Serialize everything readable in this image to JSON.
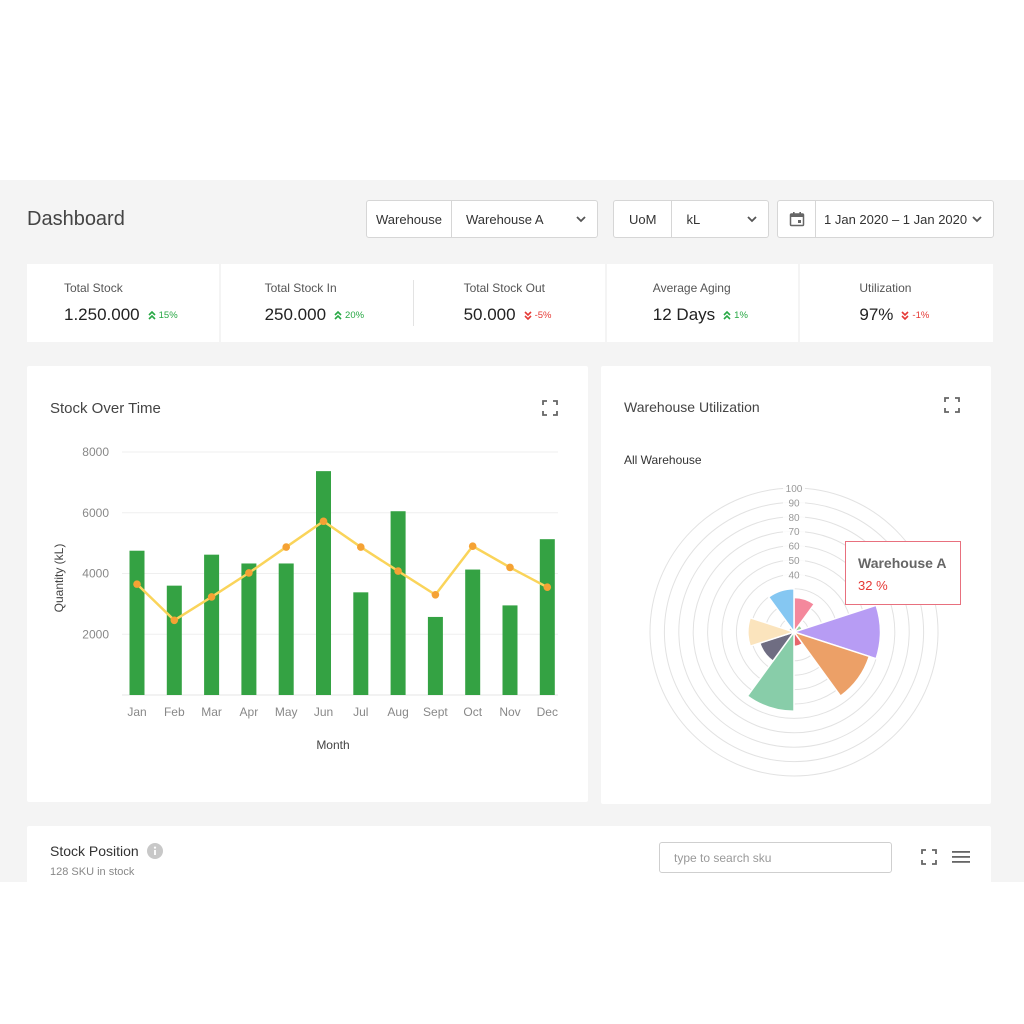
{
  "header": {
    "title": "Dashboard",
    "warehouse_filter": {
      "label": "Warehouse",
      "value": "Warehouse A"
    },
    "uom_filter": {
      "label": "UoM",
      "value": "kL"
    },
    "date_filter": {
      "value": "1 Jan 2020 – 1 Jan 2020",
      "icon": "calendar-icon"
    }
  },
  "kpis": [
    {
      "label": "Total Stock",
      "value": "1.250.000",
      "delta": "15%",
      "direction": "up"
    },
    {
      "label": "Total Stock In",
      "value": "250.000",
      "delta": "20%",
      "direction": "up"
    },
    {
      "label": "Total Stock Out",
      "value": "50.000",
      "delta": "-5%",
      "direction": "down"
    },
    {
      "label": "Average Aging",
      "value": "12 Days",
      "delta": "1%",
      "direction": "up"
    },
    {
      "label": "Utilization",
      "value": "97%",
      "delta": "-1%",
      "direction": "down"
    }
  ],
  "stock_over_time": {
    "title": "Stock Over Time",
    "chart_data": {
      "type": "bar",
      "categories": [
        "Jan",
        "Feb",
        "Mar",
        "Apr",
        "May",
        "Jun",
        "Jul",
        "Aug",
        "Sept",
        "Oct",
        "Nov",
        "Dec"
      ],
      "series": [
        {
          "type": "bar",
          "values": [
            4750,
            3600,
            4620,
            4330,
            4330,
            7370,
            3380,
            6050,
            2570,
            4130,
            2950,
            5130
          ],
          "color": "#34a243"
        },
        {
          "type": "line",
          "values": [
            3650,
            2460,
            3230,
            4020,
            4870,
            5720,
            4870,
            4080,
            3300,
            4900,
            4200,
            3550
          ],
          "color": "#fad45a",
          "marker_color": "#f5a234"
        }
      ],
      "title": "",
      "xlabel": "Month",
      "ylabel": "Quantity (kL)",
      "ylim": [
        0,
        8000
      ],
      "yticks": [
        2000,
        4000,
        6000,
        8000
      ],
      "grid": true
    }
  },
  "warehouse_utilization": {
    "title": "Warehouse Utilization",
    "subtitle": "All Warehouse",
    "tooltip": {
      "title": "Warehouse A",
      "value": "32 %"
    },
    "chart_data": {
      "type": "polar-area",
      "radial_ticks": [
        10,
        20,
        30,
        40,
        50,
        60,
        70,
        80,
        90,
        100
      ],
      "rmax": 100,
      "grid": true,
      "slices": [
        {
          "value": 24,
          "color": "#f4889c"
        },
        {
          "value": 6,
          "color": "#9bd3a0"
        },
        {
          "value": 60,
          "color": "#b79cf4"
        },
        {
          "value": 55,
          "color": "#eca067"
        },
        {
          "value": 10,
          "color": "#e7666c"
        },
        {
          "value": 55,
          "color": "#88cda9"
        },
        {
          "value": 25,
          "color": "#6f6d82"
        },
        {
          "value": 32,
          "color": "#fbe4bd"
        },
        {
          "value": 4,
          "color": "#b8b8b8"
        },
        {
          "value": 30,
          "color": "#85c7f2"
        }
      ]
    }
  },
  "stock_position": {
    "title": "Stock Position",
    "subtitle": "128 SKU in stock",
    "search_placeholder": "type to search sku"
  }
}
